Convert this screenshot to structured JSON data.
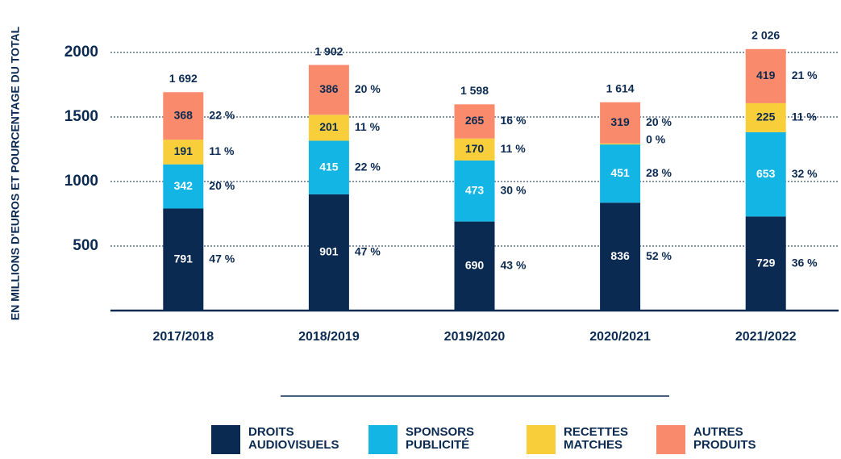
{
  "chart_data": {
    "type": "stacked_bar",
    "y_label": "EN MILLIONS D'EUROS ET POURCENTAGE DU TOTAL",
    "categories": [
      "2017/2018",
      "2018/2019",
      "2019/2020",
      "2020/2021",
      "2021/2022"
    ],
    "series": [
      {
        "name": "DROITS AUDIOVISUELS",
        "color": "#0b2a52",
        "text_color": "#ffffff",
        "values": [
          791,
          901,
          690,
          836,
          729
        ],
        "percent_labels": [
          "47 %",
          "47 %",
          "43 %",
          "52 %",
          "36 %"
        ]
      },
      {
        "name": "SPONSORS PUBLICITÉ",
        "color": "#12b5e3",
        "text_color": "#ffffff",
        "values": [
          342,
          415,
          473,
          451,
          653
        ],
        "percent_labels": [
          "20 %",
          "22 %",
          "30 %",
          "28 %",
          "32 %"
        ]
      },
      {
        "name": "RECETTES MATCHES",
        "color": "#f8cf3a",
        "text_color": "#0b2a52",
        "values": [
          191,
          201,
          170,
          8,
          225
        ],
        "percent_labels": [
          "11 %",
          "11 %",
          "11 %",
          "0 %",
          "11 %"
        ]
      },
      {
        "name": "AUTRES PRODUITS",
        "color": "#f98a6b",
        "text_color": "#0b2a52",
        "values": [
          368,
          386,
          265,
          319,
          419
        ],
        "percent_labels": [
          "22 %",
          "20 %",
          "16 %",
          "20 %",
          "21 %"
        ]
      }
    ],
    "totals": [
      1692,
      1902,
      1598,
      1614,
      2026
    ],
    "total_labels": [
      "1 692",
      "1 902",
      "1 598",
      "1 614",
      "2 026"
    ],
    "ylim": [
      0,
      2200
    ],
    "yticks": [
      500,
      1000,
      1500,
      2000
    ],
    "grid": true
  }
}
